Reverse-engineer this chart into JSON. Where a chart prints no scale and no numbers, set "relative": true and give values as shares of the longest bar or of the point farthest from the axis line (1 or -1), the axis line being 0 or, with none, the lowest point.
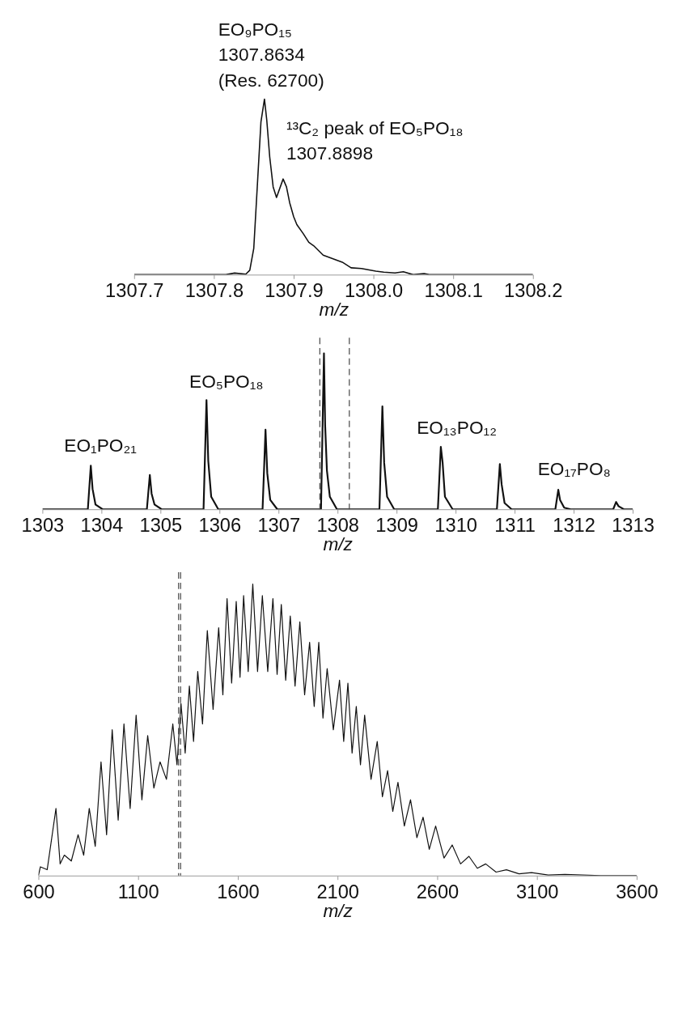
{
  "chart_data": [
    {
      "type": "line",
      "relative": true,
      "xlabel": "m/z",
      "xlim": [
        1307.7,
        1308.2
      ],
      "xticks": [
        {
          "value": 1307.7,
          "label": "1307.7"
        },
        {
          "value": 1307.8,
          "label": "1307.8"
        },
        {
          "value": 1307.9,
          "label": "1307.9"
        },
        {
          "value": 1308.0,
          "label": "1308.0"
        },
        {
          "value": 1308.1,
          "label": "1308.1"
        },
        {
          "value": 1308.2,
          "label": "1308.2"
        }
      ],
      "grid": false,
      "marker": "none",
      "line_style": "solid",
      "series": [
        {
          "color": "#111111",
          "x": [
            1307.7,
            1307.742,
            1307.815,
            1307.826,
            1307.84,
            1307.845,
            1307.85,
            1307.855,
            1307.859,
            1307.8634,
            1307.8663,
            1307.87,
            1307.8743,
            1307.8785,
            1307.8868,
            1307.891,
            1307.895,
            1307.9,
            1307.904,
            1307.912,
            1307.919,
            1307.925,
            1307.937,
            1307.961,
            1307.972,
            1307.985,
            1308.003,
            1308.013,
            1308.027,
            1308.0375,
            1308.05,
            1308.0635,
            1308.07,
            1308.2
          ],
          "values": [
            0,
            0,
            0,
            0.009,
            0.003,
            0.025,
            0.15,
            0.55,
            0.87,
            1.0,
            0.88,
            0.67,
            0.5,
            0.44,
            0.545,
            0.5,
            0.41,
            0.33,
            0.285,
            0.234,
            0.184,
            0.165,
            0.111,
            0.071,
            0.039,
            0.035,
            0.02,
            0.014,
            0.01,
            0.017,
            0,
            0.006,
            0,
            0
          ]
        }
      ],
      "annotations": [
        {
          "text": "EO₉PO₁₅\n1307.8634\n(Res. 62700)",
          "x": 1307.8634,
          "y": 1.0
        },
        {
          "text": "¹³C₂ peak of EO₅PO₁₈\n1307.8898",
          "x": 1307.8868,
          "y": 0.545
        }
      ]
    },
    {
      "type": "line",
      "relative": true,
      "xlabel": "m/z",
      "xlim": [
        1303,
        1313
      ],
      "xticks": [
        1303,
        1304,
        1305,
        1306,
        1307,
        1308,
        1309,
        1310,
        1311,
        1312,
        1313
      ],
      "grid": false,
      "marker": "none",
      "line_style": "solid",
      "series": [
        {
          "color": "#111111",
          "x": [
            1303,
            1303.77,
            1303.82,
            1303.85,
            1303.9,
            1304.02,
            1304.77,
            1304.82,
            1304.85,
            1304.9,
            1305.02,
            1305.73,
            1305.78,
            1305.81,
            1305.86,
            1305.98,
            1306.73,
            1306.78,
            1306.81,
            1306.86,
            1306.98,
            1307.72,
            1307.77,
            1307.79,
            1307.82,
            1307.87,
            1307.99,
            1308.71,
            1308.76,
            1308.79,
            1308.84,
            1308.96,
            1309.7,
            1309.75,
            1309.78,
            1309.82,
            1309.95,
            1310.7,
            1310.75,
            1310.78,
            1310.83,
            1310.95,
            1311.69,
            1311.74,
            1311.77,
            1311.84,
            1311.95,
            1312.67,
            1312.72,
            1312.76,
            1312.85,
            1313
          ],
          "values": [
            0,
            0,
            0.28,
            0.13,
            0.03,
            0,
            0,
            0.22,
            0.1,
            0.03,
            0,
            0,
            0.7,
            0.31,
            0.08,
            0,
            0,
            0.51,
            0.23,
            0.06,
            0,
            0,
            1.0,
            0.54,
            0.25,
            0.08,
            0,
            0,
            0.66,
            0.3,
            0.08,
            0,
            0,
            0.4,
            0.3,
            0.08,
            0,
            0,
            0.29,
            0.16,
            0.04,
            0,
            0,
            0.125,
            0.06,
            0.01,
            0,
            0,
            0.047,
            0.02,
            0,
            0
          ]
        }
      ],
      "ref_lines": [
        {
          "axis": "x",
          "value": 1307.7,
          "line_style": "dashed",
          "color": "#444444"
        },
        {
          "axis": "x",
          "value": 1308.2,
          "line_style": "dashed",
          "color": "#444444"
        }
      ],
      "annotations": [
        {
          "text": "EO₁PO₂₁",
          "x": 1303.82,
          "y": 0.28
        },
        {
          "text": "EO₅PO₁₈",
          "x": 1305.78,
          "y": 0.7
        },
        {
          "text": "EO₁₃PO₁₂",
          "x": 1309.75,
          "y": 0.4
        },
        {
          "text": "EO₁₇PO₈",
          "x": 1311.74,
          "y": 0.125
        }
      ]
    },
    {
      "type": "line",
      "relative": true,
      "xlabel": "m/z",
      "xlim": [
        600,
        3600
      ],
      "xticks": [
        600,
        1100,
        1600,
        2100,
        2600,
        3100,
        3600
      ],
      "grid": false,
      "marker": "none",
      "line_style": "solid",
      "series": [
        {
          "color": "#111111",
          "x": [
            600,
            610,
            644,
            688,
            709,
            730,
            765,
            799,
            827,
            855,
            885,
            914,
            942,
            970,
            1000,
            1029,
            1060,
            1090,
            1119,
            1148,
            1179,
            1210,
            1242,
            1274,
            1295,
            1315,
            1336,
            1357,
            1378,
            1399,
            1423,
            1447,
            1476,
            1504,
            1525,
            1546,
            1569,
            1592,
            1611,
            1629,
            1652,
            1675,
            1699,
            1723,
            1750,
            1776,
            1797,
            1818,
            1840,
            1863,
            1887,
            1911,
            1935,
            1960,
            1983,
            2006,
            2027,
            2048,
            2079,
            2110,
            2131,
            2152,
            2173,
            2194,
            2215,
            2236,
            2268,
            2299,
            2325,
            2351,
            2377,
            2403,
            2435,
            2466,
            2498,
            2529,
            2560,
            2592,
            2634,
            2675,
            2717,
            2759,
            2801,
            2843,
            2895,
            2947,
            3010,
            3073,
            3157,
            3240,
            3420,
            3600
          ],
          "values": [
            0,
            0.03,
            0.02,
            0.23,
            0.04,
            0.07,
            0.05,
            0.14,
            0.07,
            0.23,
            0.1,
            0.39,
            0.14,
            0.5,
            0.19,
            0.52,
            0.23,
            0.55,
            0.26,
            0.48,
            0.3,
            0.39,
            0.33,
            0.52,
            0.38,
            0.59,
            0.42,
            0.65,
            0.46,
            0.7,
            0.52,
            0.84,
            0.57,
            0.85,
            0.62,
            0.95,
            0.66,
            0.94,
            0.68,
            0.96,
            0.7,
            1.0,
            0.7,
            0.96,
            0.7,
            0.95,
            0.69,
            0.93,
            0.67,
            0.89,
            0.65,
            0.87,
            0.62,
            0.8,
            0.58,
            0.8,
            0.54,
            0.71,
            0.5,
            0.67,
            0.46,
            0.66,
            0.42,
            0.58,
            0.38,
            0.55,
            0.33,
            0.46,
            0.27,
            0.36,
            0.22,
            0.32,
            0.17,
            0.26,
            0.13,
            0.2,
            0.09,
            0.17,
            0.06,
            0.105,
            0.04,
            0.066,
            0.025,
            0.04,
            0.012,
            0.02,
            0.006,
            0.01,
            0.002,
            0.004,
            0,
            0
          ]
        }
      ],
      "ref_lines": [
        {
          "axis": "x",
          "value": 1303,
          "line_style": "dashed",
          "color": "#444444"
        },
        {
          "axis": "x",
          "value": 1313,
          "line_style": "dashed",
          "color": "#444444"
        }
      ]
    }
  ]
}
